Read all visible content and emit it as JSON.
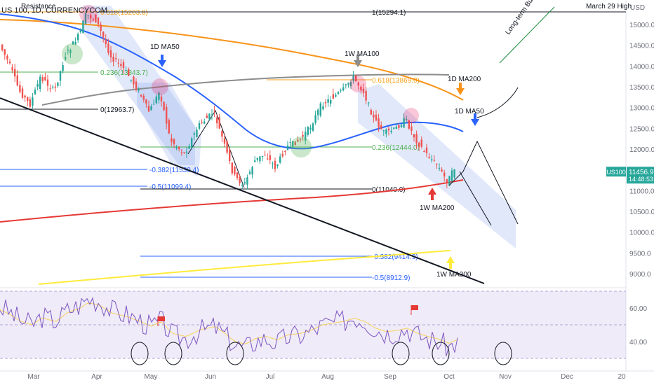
{
  "chart_data": {
    "type": "candlestick",
    "symbol": "US 100, 1D, CURRENCYCOM",
    "price_axis_unit": "USD",
    "price_axis_ticks": [
      15000,
      14500,
      14000,
      13500,
      13000,
      12500,
      12000,
      11500,
      11000,
      10500,
      10000,
      9500,
      9000
    ],
    "price_range": [
      8700,
      15300
    ],
    "time_axis_ticks": [
      "Mar",
      "Apr",
      "May",
      "Jun",
      "Jul",
      "Aug",
      "Sep",
      "Oct",
      "Nov",
      "Dec",
      "20"
    ],
    "last_price": {
      "symbol": "US100",
      "value": "11456.9",
      "countdown": "14:48:53"
    },
    "fib_levels_left": [
      {
        "label": "0.618(15203.8)",
        "value": 15203.8,
        "color": "#f7a21b"
      },
      {
        "label": "0.236(13843.7)",
        "value": 13843.7,
        "color": "#4caf50"
      },
      {
        "label": "0(12963.7)",
        "value": 12963.7,
        "color": "#131722"
      },
      {
        "label": "-0.382(11539.4)",
        "value": 11539.4,
        "color": "#2962ff"
      },
      {
        "label": "-0.5(11099.4)",
        "value": 11099.4,
        "color": "#2962ff"
      }
    ],
    "fib_levels_right": [
      {
        "label": "1(15294.1)",
        "value": 15294.1,
        "color": "#131722"
      },
      {
        "label": "0.618(13869.0)",
        "value": 13869.0,
        "color": "#f7a21b"
      },
      {
        "label": "0.236(12444.0)",
        "value": 12444.0,
        "color": "#4caf50"
      },
      {
        "label": "0(11040.0)",
        "value": 11040.0,
        "color": "#131722"
      },
      {
        "label": "-0.382(9414.9)",
        "value": 9414.9,
        "color": "#2962ff"
      },
      {
        "label": "-0.5(8912.9)",
        "value": 8912.9,
        "color": "#2962ff"
      }
    ],
    "annotations": {
      "resistance": "Resistance",
      "march_high": "March 29 High",
      "long_term": "Long-term Bull above the",
      "ma_labels": [
        "1D MA50",
        "1W MA100",
        "1D MA200",
        "1D MA50",
        "1W MA200",
        "1W MA300"
      ]
    },
    "series": [
      {
        "name": "1D MA50",
        "color": "#2962ff"
      },
      {
        "name": "1D MA200",
        "color": "#f7931a"
      },
      {
        "name": "1W MA100",
        "color": "#8c8c8c"
      },
      {
        "name": "1W MA200",
        "color": "#e53935"
      },
      {
        "name": "1W MA300",
        "color": "#ffeb3b"
      }
    ],
    "rsi": {
      "ticks": [
        60,
        40
      ],
      "range": [
        26,
        76
      ],
      "band": [
        30,
        70
      ]
    }
  }
}
